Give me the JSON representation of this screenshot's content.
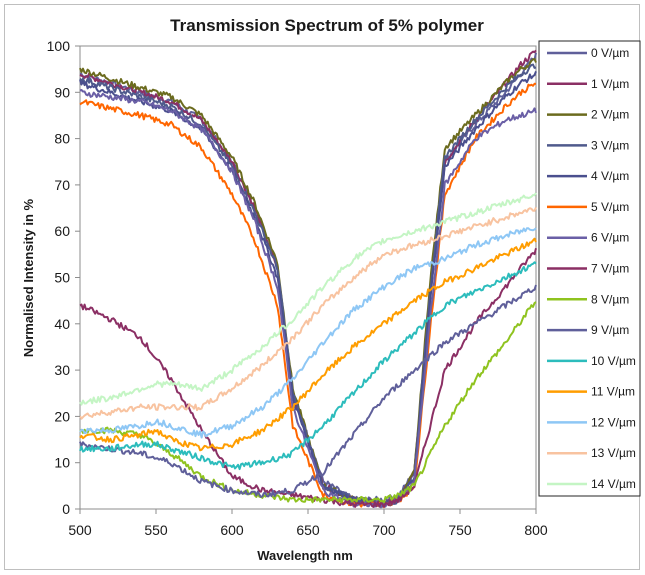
{
  "chart_data": {
    "type": "line",
    "title": "Transmission Spectrum of 5% polymer",
    "xlabel": "Wavelength nm",
    "ylabel": "Normalised Intensity in %",
    "xlim": [
      500,
      800
    ],
    "ylim": [
      0,
      100
    ],
    "xticks": [
      500,
      550,
      600,
      650,
      700,
      750,
      800
    ],
    "yticks": [
      0,
      10,
      20,
      30,
      40,
      50,
      60,
      70,
      80,
      90,
      100
    ],
    "grid": false,
    "legend_position": "right",
    "series": [
      {
        "name": "0 V/µm",
        "color": "#5f5f9a",
        "x": [
          500,
          540,
          560,
          580,
          600,
          615,
          630,
          640,
          660,
          680,
          700,
          710,
          720,
          730,
          740,
          760,
          780,
          790,
          800
        ],
        "y": [
          94,
          90,
          88,
          84,
          75,
          65,
          52,
          25,
          6,
          2,
          2,
          3,
          8,
          45,
          75,
          83,
          90,
          94,
          98
        ]
      },
      {
        "name": "1 V/µm",
        "color": "#8b2f64",
        "x": [
          500,
          540,
          560,
          580,
          600,
          615,
          630,
          640,
          660,
          680,
          700,
          710,
          720,
          730,
          740,
          760,
          780,
          790,
          800
        ],
        "y": [
          94,
          90,
          88,
          84,
          75,
          65,
          52,
          25,
          5,
          2,
          1,
          2,
          8,
          45,
          75,
          84,
          92,
          96,
          99
        ]
      },
      {
        "name": "2 V/µm",
        "color": "#6b6b1e",
        "x": [
          500,
          540,
          560,
          580,
          600,
          615,
          630,
          640,
          660,
          680,
          700,
          710,
          720,
          730,
          740,
          760,
          780,
          790,
          800
        ],
        "y": [
          95,
          91,
          89,
          85,
          76,
          66,
          53,
          26,
          5,
          2,
          1,
          2,
          8,
          48,
          78,
          85,
          92,
          95,
          97
        ]
      },
      {
        "name": "3 V/µm",
        "color": "#4f5a8c",
        "x": [
          500,
          540,
          560,
          580,
          600,
          615,
          630,
          640,
          660,
          680,
          700,
          710,
          720,
          730,
          740,
          760,
          780,
          790,
          800
        ],
        "y": [
          93,
          89,
          87,
          83,
          74,
          64,
          52,
          25,
          5,
          2,
          1,
          2,
          7,
          46,
          76,
          84,
          91,
          94,
          96
        ]
      },
      {
        "name": "4 V/µm",
        "color": "#4a4f8e",
        "x": [
          500,
          540,
          560,
          580,
          600,
          615,
          630,
          640,
          660,
          680,
          700,
          710,
          720,
          730,
          740,
          760,
          780,
          790,
          800
        ],
        "y": [
          92,
          88,
          86,
          82,
          73,
          63,
          50,
          24,
          5,
          2,
          1,
          2,
          7,
          44,
          74,
          82,
          89,
          92,
          94
        ]
      },
      {
        "name": "5 V/µm",
        "color": "#ff6600",
        "x": [
          500,
          540,
          560,
          580,
          600,
          615,
          630,
          640,
          660,
          680,
          700,
          710,
          720,
          730,
          740,
          760,
          780,
          790,
          800
        ],
        "y": [
          88,
          85,
          83,
          78,
          68,
          58,
          44,
          18,
          3,
          1,
          1,
          2,
          5,
          38,
          68,
          80,
          87,
          90,
          92
        ]
      },
      {
        "name": "6 V/µm",
        "color": "#6a5fa6",
        "x": [
          500,
          540,
          560,
          580,
          600,
          615,
          630,
          640,
          660,
          680,
          700,
          710,
          720,
          730,
          740,
          760,
          780,
          790,
          800
        ],
        "y": [
          90,
          88,
          86,
          82,
          73,
          62,
          48,
          22,
          4,
          1,
          1,
          2,
          6,
          40,
          70,
          80,
          84,
          85,
          86
        ]
      },
      {
        "name": "7 V/µm",
        "color": "#8b2f64",
        "x": [
          500,
          520,
          540,
          560,
          580,
          600,
          620,
          640,
          660,
          680,
          700,
          710,
          720,
          740,
          760,
          780,
          800
        ],
        "y": [
          44,
          41,
          37,
          28,
          17,
          7,
          4,
          3,
          2,
          1,
          1,
          2,
          5,
          30,
          40,
          48,
          56
        ]
      },
      {
        "name": "8 V/µm",
        "color": "#8fc31f",
        "x": [
          500,
          520,
          540,
          560,
          580,
          600,
          620,
          640,
          660,
          680,
          700,
          710,
          720,
          740,
          760,
          780,
          800
        ],
        "y": [
          17,
          17,
          16,
          12,
          7,
          4,
          3,
          2,
          2,
          2,
          2,
          3,
          5,
          18,
          28,
          36,
          45
        ]
      },
      {
        "name": "9 V/µm",
        "color": "#5f5f9a",
        "x": [
          500,
          520,
          540,
          560,
          580,
          600,
          620,
          640,
          660,
          680,
          700,
          720,
          740,
          760,
          780,
          800
        ],
        "y": [
          14,
          13,
          12,
          10,
          6,
          4,
          3,
          4,
          8,
          16,
          24,
          30,
          36,
          40,
          44,
          48
        ]
      },
      {
        "name": "10 V/µm",
        "color": "#2cbcbc",
        "x": [
          500,
          520,
          540,
          550,
          560,
          580,
          600,
          620,
          640,
          660,
          680,
          700,
          720,
          740,
          760,
          780,
          800
        ],
        "y": [
          13,
          13,
          14,
          14,
          13,
          11,
          9,
          10,
          12,
          18,
          25,
          32,
          38,
          44,
          47,
          50,
          53
        ]
      },
      {
        "name": "11 V/µm",
        "color": "#ff9d00",
        "x": [
          500,
          520,
          540,
          550,
          560,
          580,
          600,
          620,
          640,
          660,
          680,
          700,
          720,
          740,
          760,
          780,
          800
        ],
        "y": [
          16,
          15,
          16,
          17,
          15,
          13,
          14,
          17,
          22,
          29,
          35,
          40,
          45,
          49,
          52,
          55,
          58
        ]
      },
      {
        "name": "12 V/µm",
        "color": "#8ec7f5",
        "x": [
          500,
          520,
          540,
          550,
          560,
          580,
          600,
          620,
          640,
          660,
          680,
          700,
          720,
          740,
          760,
          780,
          800
        ],
        "y": [
          17,
          17,
          18,
          19,
          18,
          16,
          18,
          22,
          28,
          36,
          43,
          48,
          52,
          54,
          57,
          59,
          61
        ]
      },
      {
        "name": "13 V/µm",
        "color": "#f8c3a0",
        "x": [
          500,
          520,
          540,
          550,
          560,
          580,
          600,
          620,
          640,
          660,
          680,
          700,
          720,
          740,
          760,
          780,
          800
        ],
        "y": [
          20,
          21,
          22,
          22,
          22,
          22,
          26,
          31,
          37,
          44,
          50,
          55,
          57,
          59,
          61,
          63,
          65
        ]
      },
      {
        "name": "14 V/µm",
        "color": "#c4f5c4",
        "x": [
          500,
          520,
          540,
          550,
          560,
          580,
          600,
          620,
          640,
          660,
          680,
          700,
          720,
          740,
          760,
          780,
          800
        ],
        "y": [
          23,
          24,
          26,
          27,
          27,
          26,
          30,
          35,
          41,
          48,
          54,
          58,
          60,
          62,
          64,
          66,
          68
        ]
      }
    ]
  }
}
